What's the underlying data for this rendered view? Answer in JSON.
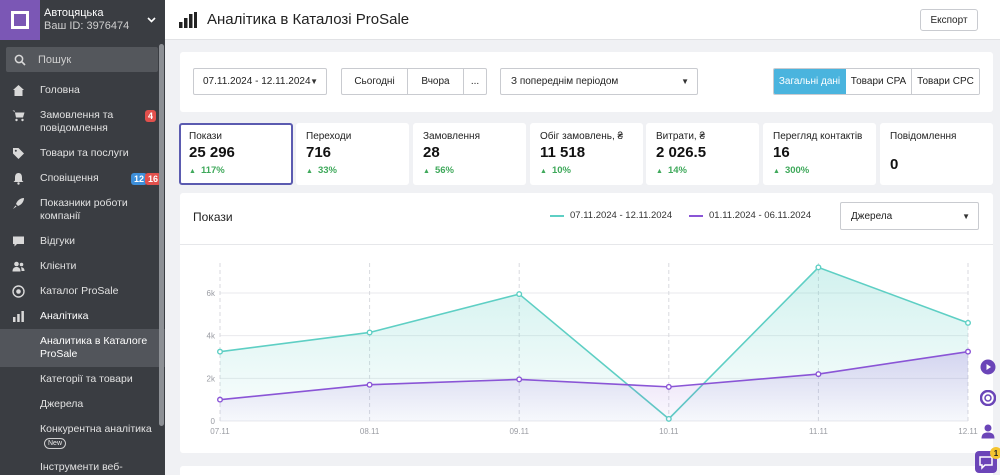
{
  "account": {
    "name": "Автоцяцька",
    "id_text": "Ваш ID: 3976474"
  },
  "search": {
    "placeholder": "Пошук"
  },
  "nav": [
    {
      "label": "Головна",
      "icon": "home-icon"
    },
    {
      "label": "Замовлення та повідомлення",
      "icon": "cart-icon",
      "badge_red": "4"
    },
    {
      "label": "Товари та послуги",
      "icon": "tag-icon"
    },
    {
      "label": "Сповіщення",
      "icon": "bell-icon",
      "badge_blue": "12",
      "badge_red": "16"
    },
    {
      "label": "Показники роботи компанії",
      "icon": "rocket-icon"
    },
    {
      "label": "Відгуки",
      "icon": "comment-icon"
    },
    {
      "label": "Клієнти",
      "icon": "users-icon"
    },
    {
      "label": "Каталог ProSale",
      "icon": "target-icon"
    },
    {
      "label": "Аналітика",
      "icon": "chart-icon"
    }
  ],
  "subnav": [
    {
      "label": "Аналитика в Каталоге ProSale",
      "active": true
    },
    {
      "label": "Категорії та товари"
    },
    {
      "label": "Джерела"
    },
    {
      "label": "Конкурентна аналітика",
      "tag": "New"
    },
    {
      "label": "Інструменти веб-аналітики"
    }
  ],
  "header": {
    "title": "Аналітика в Каталозі ProSale",
    "export_label": "Експорт"
  },
  "filters": {
    "date_range": "07.11.2024 - 12.11.2024",
    "today": "Сьогодні",
    "yesterday": "Вчора",
    "more": "...",
    "compare": "З попереднім періодом",
    "tabs": [
      "Загальні дані",
      "Товари CPA",
      "Товари CPC"
    ],
    "active_tab": "Загальні дані"
  },
  "metrics": [
    {
      "label": "Покази",
      "value": "25 296",
      "change": "117%"
    },
    {
      "label": "Переходи",
      "value": "716",
      "change": "33%"
    },
    {
      "label": "Замовлення",
      "value": "28",
      "change": "56%"
    },
    {
      "label": "Обіг замовлень, ₴",
      "value": "11 518",
      "change": "10%"
    },
    {
      "label": "Витрати, ₴",
      "value": "2 026.5",
      "change": "14%"
    },
    {
      "label": "Перегляд контактів",
      "value": "16",
      "change": "300%"
    },
    {
      "label": "Повідомлення",
      "value": "0",
      "change": ""
    }
  ],
  "chart_header": {
    "title": "Покази",
    "source_select": "Джерела"
  },
  "colors": {
    "accent": "#7b57b5",
    "teal": "#5ecfc4",
    "purple": "#8a55d6",
    "tab_active": "#4ab4de",
    "positive": "#3fa95b"
  },
  "chart_data": {
    "type": "area",
    "title": "Покази",
    "x": [
      "07.11",
      "08.11",
      "09.11",
      "10.11",
      "11.11",
      "12.11"
    ],
    "ytick_labels": [
      "0",
      "2k",
      "4k",
      "6k"
    ],
    "ylim": [
      0,
      6000
    ],
    "grid": true,
    "legend_position": "top",
    "series": [
      {
        "name": "07.11.2024 - 12.11.2024",
        "color": "#5ecfc4",
        "values": [
          3250,
          4150,
          5950,
          100,
          7200,
          4600
        ]
      },
      {
        "name": "01.11.2024 - 06.11.2024",
        "color": "#8a55d6",
        "values": [
          1000,
          1700,
          1950,
          1600,
          2200,
          3250
        ]
      }
    ]
  }
}
